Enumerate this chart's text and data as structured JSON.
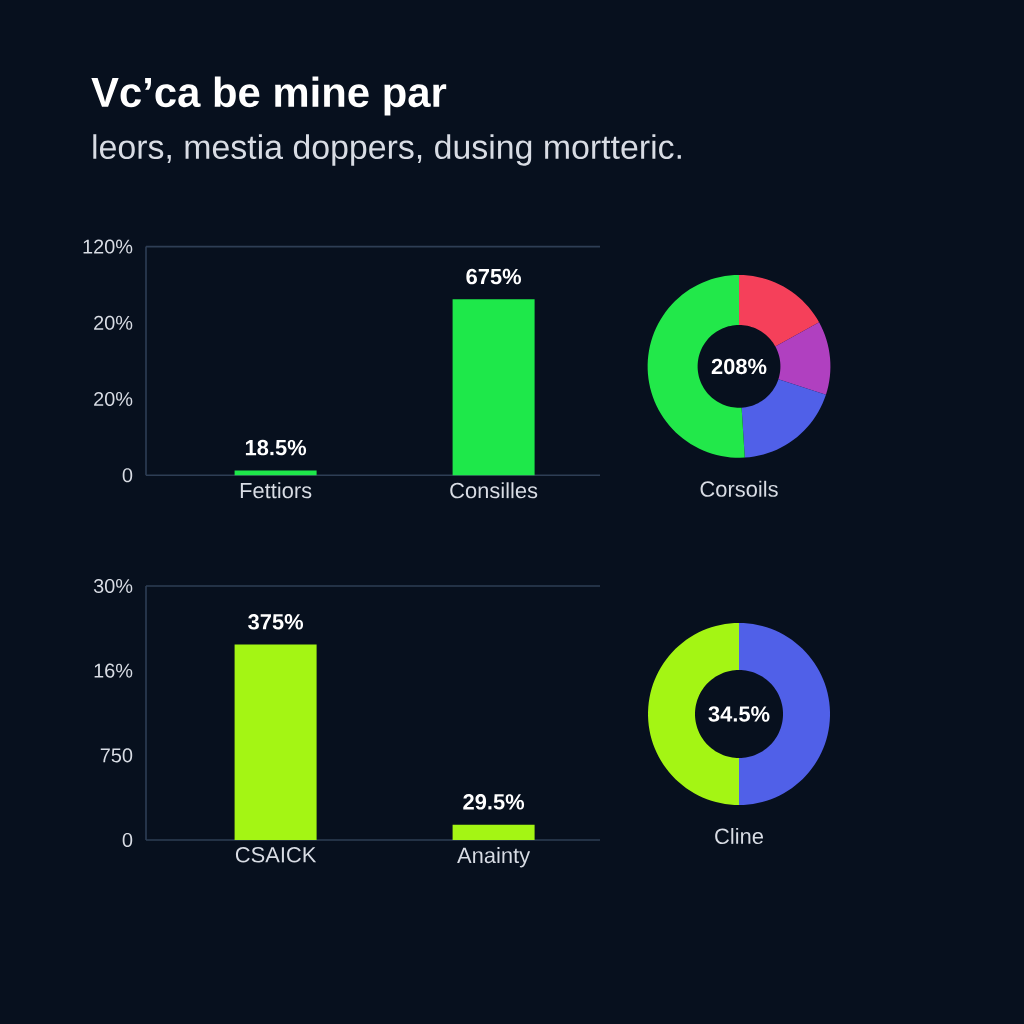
{
  "chart_data": [
    {
      "type": "bar",
      "title": "Vc’ca be mine par",
      "subtitle": "leors, mestia doppers, dusing mortteric.",
      "categories": [
        "Fettiors",
        "Consilles"
      ],
      "values": [
        18.5,
        675
      ],
      "value_labels": [
        "18.5%",
        "675%"
      ],
      "color": "#1ee84a",
      "annotations": [
        "0",
        "20%",
        "20%",
        "120%"
      ]
    },
    {
      "type": "donut",
      "xlabel": "Corsoils",
      "categories": [
        null,
        null,
        null,
        null
      ],
      "values": [
        17,
        13,
        19,
        51
      ],
      "colors": [
        "#f5405a",
        "#b040c0",
        "#5060e8",
        "#22e84a"
      ],
      "annotations": [
        "208%"
      ]
    },
    {
      "type": "bar",
      "categories": [
        "CSAICK",
        "Anainty"
      ],
      "values": [
        375,
        29.5
      ],
      "value_labels": [
        "375%",
        "29.5%"
      ],
      "color": "#a4f514",
      "annotations": [
        "0",
        "750",
        "16%",
        "30%"
      ]
    },
    {
      "type": "donut",
      "xlabel": "Cline",
      "categories": [
        null,
        null
      ],
      "values": [
        50,
        50
      ],
      "colors": [
        "#5060e8",
        "#a4f514"
      ],
      "annotations": [
        "34.5%"
      ]
    }
  ]
}
